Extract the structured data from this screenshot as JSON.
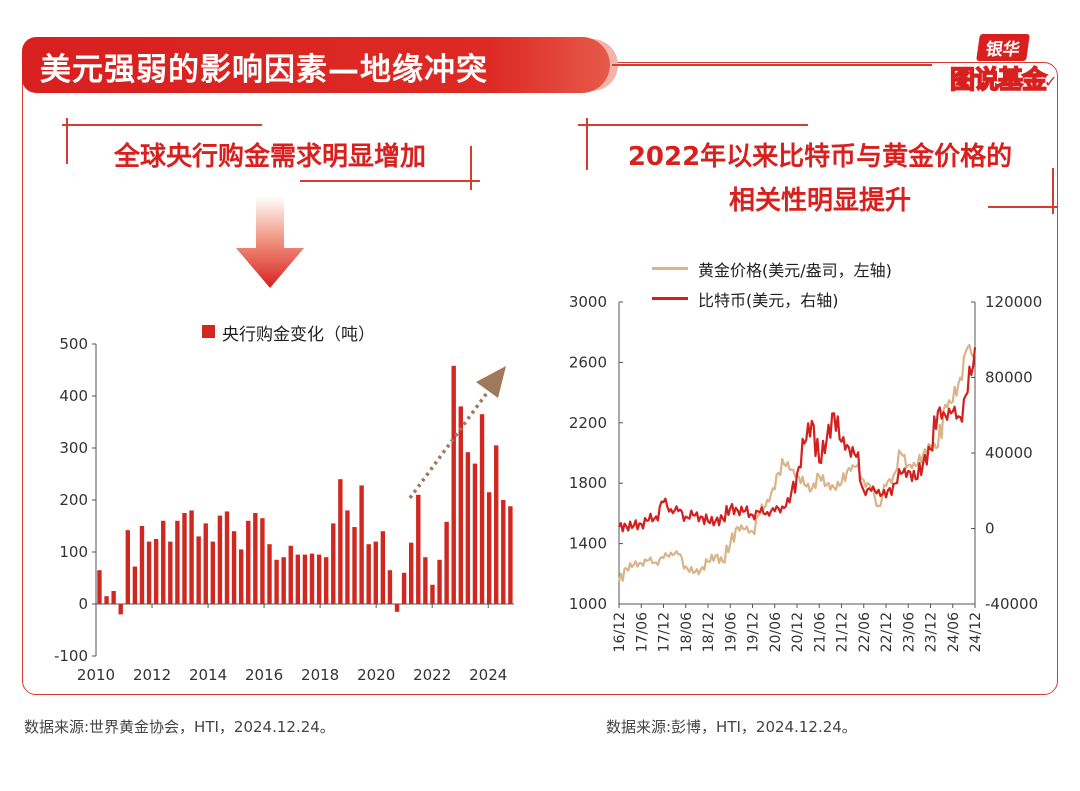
{
  "header": {
    "title": "美元强弱的影响因素—地缘冲突",
    "brand_top": "银华",
    "brand_bottom": "图说基金"
  },
  "left_panel": {
    "subtitle": "全球央行购金需求明显增加",
    "source": "数据来源:世界黄金协会，HTI，2024.12.24。"
  },
  "right_panel": {
    "subtitle_line1": "2022年以来比特币与黄金价格的",
    "subtitle_line2": "相关性明显提升",
    "source": "数据来源:彭博，HTI，2024.12.24。"
  },
  "colors": {
    "accent": "#d8201f",
    "bar": "#d02821",
    "gold": "#d9b48a",
    "bitcoin": "#d41f1f",
    "trend_arrow": "#a0785a"
  },
  "chart_data": [
    {
      "type": "bar",
      "legend": [
        "央行购金变化（吨）"
      ],
      "series": [
        {
          "name": "央行购金变化（吨）",
          "values": [
            65,
            15,
            25,
            -20,
            142,
            72,
            150,
            120,
            125,
            160,
            120,
            160,
            175,
            180,
            130,
            155,
            120,
            170,
            178,
            140,
            105,
            160,
            175,
            165,
            115,
            85,
            90,
            112,
            95,
            95,
            97,
            95,
            90,
            155,
            240,
            180,
            148,
            228,
            115,
            120,
            140,
            65,
            -15,
            60,
            118,
            210,
            90,
            37,
            85,
            158,
            458,
            380,
            292,
            270,
            365,
            215,
            305,
            200,
            188
          ]
        }
      ],
      "x_ticks": [
        "2010",
        "2012",
        "2014",
        "2016",
        "2018",
        "2020",
        "2022",
        "2024"
      ],
      "x_range": [
        2010.0,
        2024.92
      ],
      "y_ticks": [
        -100,
        0,
        100,
        200,
        300,
        400,
        500
      ],
      "ylim": [
        -100,
        500
      ]
    },
    {
      "type": "line",
      "legend_position": "top",
      "series": [
        {
          "name": "黄金价格(美元/盎司，左轴)",
          "axis": "left",
          "x": [
            "16/12",
            "17/02",
            "17/04",
            "17/06",
            "17/08",
            "17/10",
            "17/12",
            "18/02",
            "18/04",
            "18/06",
            "18/08",
            "18/10",
            "18/12",
            "19/02",
            "19/04",
            "19/06",
            "19/08",
            "19/10",
            "19/12",
            "20/02",
            "20/04",
            "20/06",
            "20/08",
            "20/10",
            "20/12",
            "21/02",
            "21/04",
            "21/06",
            "21/08",
            "21/10",
            "21/12",
            "22/02",
            "22/04",
            "22/06",
            "22/08",
            "22/10",
            "22/12",
            "23/02",
            "23/04",
            "23/06",
            "23/08",
            "23/10",
            "23/12",
            "24/02",
            "24/04",
            "24/06",
            "24/08",
            "24/10",
            "24/12"
          ],
          "values": [
            1150,
            1235,
            1260,
            1270,
            1290,
            1275,
            1305,
            1340,
            1330,
            1250,
            1205,
            1225,
            1280,
            1320,
            1280,
            1400,
            1510,
            1495,
            1480,
            1600,
            1690,
            1760,
            1960,
            1890,
            1860,
            1790,
            1760,
            1850,
            1790,
            1770,
            1800,
            1900,
            1910,
            1820,
            1760,
            1650,
            1780,
            1850,
            2000,
            1920,
            1915,
            1990,
            2050,
            2040,
            2320,
            2340,
            2500,
            2700,
            2640
          ]
        },
        {
          "name": "比特币(美元，右轴)",
          "axis": "right",
          "x": [
            "16/12",
            "17/02",
            "17/04",
            "17/06",
            "17/08",
            "17/10",
            "17/12",
            "18/02",
            "18/04",
            "18/06",
            "18/08",
            "18/10",
            "18/12",
            "19/02",
            "19/04",
            "19/06",
            "19/08",
            "19/10",
            "19/12",
            "20/02",
            "20/04",
            "20/06",
            "20/08",
            "20/10",
            "20/12",
            "21/02",
            "21/04",
            "21/06",
            "21/08",
            "21/10",
            "21/12",
            "22/02",
            "22/04",
            "22/06",
            "22/08",
            "22/10",
            "22/12",
            "23/02",
            "23/04",
            "23/06",
            "23/08",
            "23/10",
            "23/12",
            "24/02",
            "24/04",
            "24/06",
            "24/08",
            "24/10",
            "24/12"
          ],
          "values": [
            960,
            1100,
            1400,
            2500,
            4400,
            6400,
            14000,
            10300,
            9200,
            6300,
            7000,
            6300,
            3800,
            3800,
            5300,
            10800,
            9600,
            9200,
            7200,
            8600,
            8800,
            9100,
            11700,
            13800,
            29000,
            45000,
            57000,
            35000,
            47000,
            61000,
            46000,
            43000,
            38000,
            20000,
            20000,
            20500,
            16500,
            23500,
            29000,
            30500,
            26000,
            34500,
            42000,
            62000,
            60000,
            62000,
            59000,
            72000,
            96000
          ]
        }
      ],
      "x_ticks": [
        "16/12",
        "17/06",
        "17/12",
        "18/06",
        "18/12",
        "19/06",
        "19/12",
        "20/06",
        "20/12",
        "21/06",
        "21/12",
        "22/06",
        "22/12",
        "23/06",
        "23/12",
        "24/06",
        "24/12"
      ],
      "y_left_ticks": [
        1000,
        1400,
        1800,
        2200,
        2600,
        3000
      ],
      "y_right_ticks": [
        -40000,
        0,
        40000,
        80000,
        120000
      ],
      "ylim_left": [
        1000,
        3000
      ],
      "ylim_right": [
        -40000,
        120000
      ]
    }
  ]
}
